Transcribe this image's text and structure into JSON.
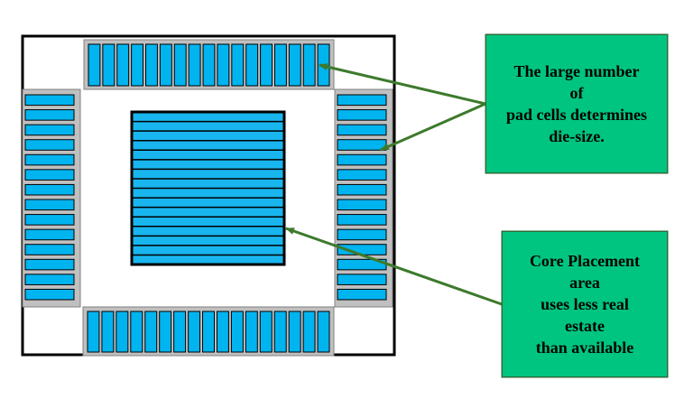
{
  "colors": {
    "die_border": "#000000",
    "pad_ring_fill": "#c0c0c0",
    "pad_cell_fill": "#00b4f0",
    "core_fill": "#19b5ee",
    "core_row_lines": "#000000",
    "callout_fill": "#00c580",
    "callout_border": "#2e6b3a",
    "arrow": "#3d7a2c"
  },
  "pad_counts": {
    "top": 17,
    "bottom": 17,
    "left": 14,
    "right": 14
  },
  "core_rows": 16,
  "callouts": {
    "pads": {
      "lines": [
        "The large number",
        "of",
        "pad cells determines",
        "die-size."
      ]
    },
    "core": {
      "lines": [
        "Core Placement",
        "area",
        "uses less real",
        "estate",
        "than available"
      ]
    }
  }
}
